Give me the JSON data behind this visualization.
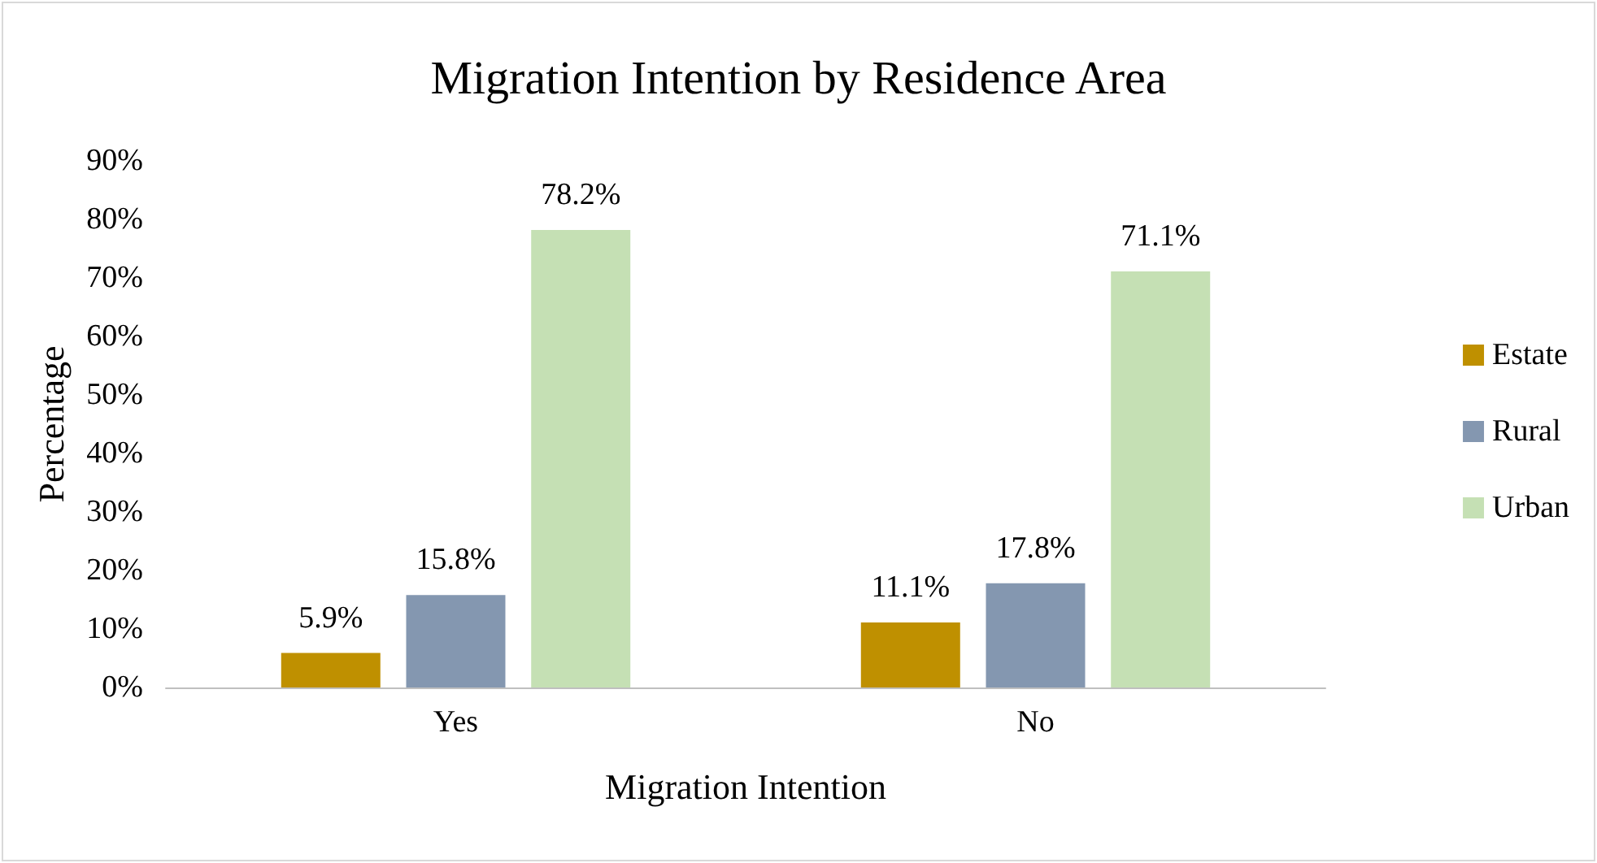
{
  "chart_data": {
    "type": "bar",
    "title": "Migration Intention by Residence Area",
    "xlabel": "Migration Intention",
    "ylabel": "Percentage",
    "categories": [
      "Yes",
      "No"
    ],
    "series": [
      {
        "name": "Estate",
        "color": "#bf9000",
        "values": [
          5.9,
          11.1
        ],
        "value_labels": [
          "5.9%",
          "11.1%"
        ]
      },
      {
        "name": "Rural",
        "color": "#8497b0",
        "values": [
          15.8,
          17.8
        ],
        "value_labels": [
          "15.8%",
          "17.8%"
        ]
      },
      {
        "name": "Urban",
        "color": "#c5e0b4",
        "values": [
          78.2,
          71.1
        ],
        "value_labels": [
          "78.2%",
          "71.1%"
        ]
      }
    ],
    "ylim": [
      0,
      90
    ],
    "yticks": [
      {
        "value": 0,
        "label": "0%"
      },
      {
        "value": 10,
        "label": "10%"
      },
      {
        "value": 20,
        "label": "20%"
      },
      {
        "value": 30,
        "label": "30%"
      },
      {
        "value": 40,
        "label": "40%"
      },
      {
        "value": 50,
        "label": "50%"
      },
      {
        "value": 60,
        "label": "60%"
      },
      {
        "value": 70,
        "label": "70%"
      },
      {
        "value": 80,
        "label": "80%"
      },
      {
        "value": 90,
        "label": "90%"
      }
    ],
    "grid": false,
    "legend": "right"
  }
}
